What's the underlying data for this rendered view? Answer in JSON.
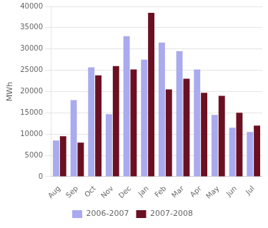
{
  "chart_data": {
    "type": "bar",
    "categories": [
      "Aug",
      "Sep",
      "Oct",
      "Nov",
      "Dec",
      "Jan",
      "Feb",
      "Mar",
      "Apr",
      "May",
      "Jun",
      "Jul"
    ],
    "series": [
      {
        "name": "2006-2007",
        "color": "#aaaaee",
        "values": [
          8500,
          18000,
          25700,
          14700,
          33000,
          27500,
          31500,
          29500,
          25200,
          14500,
          11500,
          10500
        ]
      },
      {
        "name": "2007-2008",
        "color": "#6b1020",
        "values": [
          9500,
          8000,
          23800,
          26000,
          25200,
          38500,
          20500,
          23000,
          19700,
          19000,
          15000,
          12000
        ]
      }
    ],
    "ylabel": "MWh",
    "ylim": [
      0,
      40000
    ],
    "yticks": [
      0,
      5000,
      10000,
      15000,
      20000,
      25000,
      30000,
      35000,
      40000
    ],
    "grid": true,
    "legend": "bottom"
  }
}
